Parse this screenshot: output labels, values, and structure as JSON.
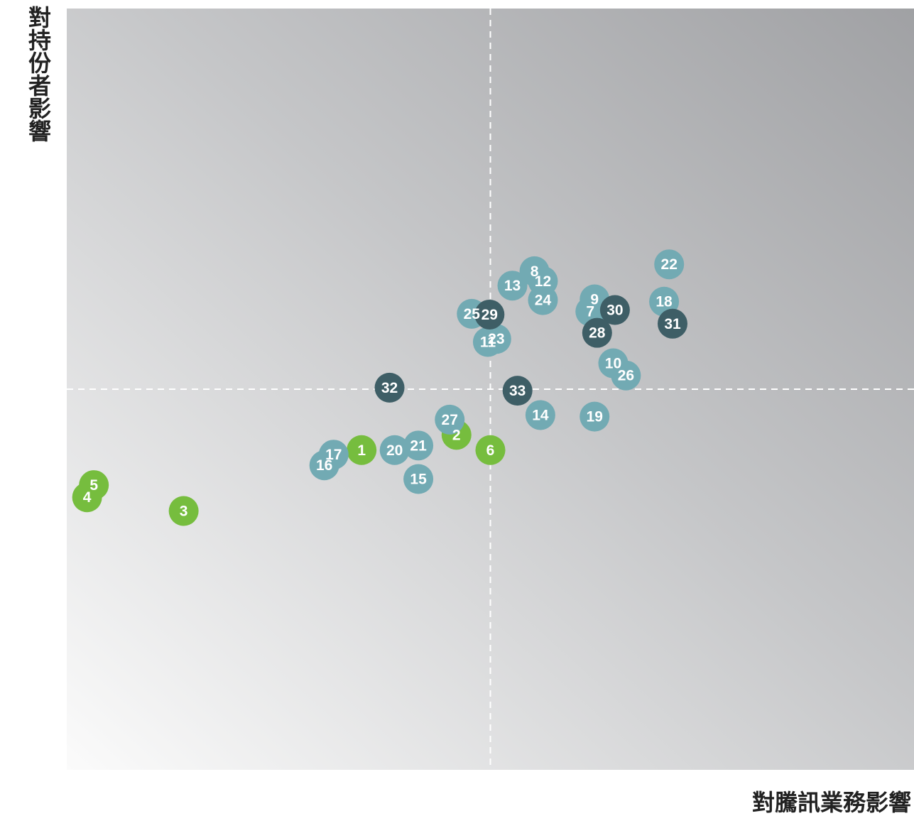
{
  "chart_data": {
    "type": "scatter",
    "title": "",
    "xlabel": "對騰訊業務影響",
    "ylabel": "對持份者影響",
    "xlim": [
      0,
      100
    ],
    "ylim": [
      0,
      100
    ],
    "grid": false,
    "quadrant_lines": {
      "x": 50,
      "y": 50
    },
    "colors": {
      "green": "#76bd3e",
      "teal": "#72aab3",
      "dark": "#3e5e66"
    },
    "points": [
      {
        "label": "1",
        "x": 34.8,
        "y": 42.0,
        "color": "green"
      },
      {
        "label": "2",
        "x": 46.0,
        "y": 44.0,
        "color": "green"
      },
      {
        "label": "3",
        "x": 13.8,
        "y": 34.0,
        "color": "green"
      },
      {
        "label": "4",
        "x": 2.4,
        "y": 35.8,
        "color": "green"
      },
      {
        "label": "5",
        "x": 3.2,
        "y": 37.4,
        "color": "green"
      },
      {
        "label": "6",
        "x": 50.0,
        "y": 42.0,
        "color": "green"
      },
      {
        "label": "7",
        "x": 61.8,
        "y": 60.2,
        "color": "teal"
      },
      {
        "label": "8",
        "x": 55.2,
        "y": 65.5,
        "color": "teal"
      },
      {
        "label": "9",
        "x": 62.3,
        "y": 61.8,
        "color": "teal"
      },
      {
        "label": "10",
        "x": 64.5,
        "y": 53.4,
        "color": "teal"
      },
      {
        "label": "11",
        "x": 49.7,
        "y": 56.2,
        "color": "teal"
      },
      {
        "label": "12",
        "x": 56.2,
        "y": 64.2,
        "color": "teal"
      },
      {
        "label": "13",
        "x": 52.6,
        "y": 63.6,
        "color": "teal"
      },
      {
        "label": "14",
        "x": 55.9,
        "y": 46.6,
        "color": "teal"
      },
      {
        "label": "15",
        "x": 41.5,
        "y": 38.2,
        "color": "teal"
      },
      {
        "label": "16",
        "x": 30.4,
        "y": 40.0,
        "color": "teal"
      },
      {
        "label": "17",
        "x": 31.5,
        "y": 41.4,
        "color": "teal"
      },
      {
        "label": "18",
        "x": 70.5,
        "y": 61.5,
        "color": "teal"
      },
      {
        "label": "19",
        "x": 62.3,
        "y": 46.4,
        "color": "teal"
      },
      {
        "label": "20",
        "x": 38.7,
        "y": 42.0,
        "color": "teal"
      },
      {
        "label": "21",
        "x": 41.5,
        "y": 42.6,
        "color": "teal"
      },
      {
        "label": "22",
        "x": 71.1,
        "y": 66.4,
        "color": "teal"
      },
      {
        "label": "23",
        "x": 50.7,
        "y": 56.6,
        "color": "teal"
      },
      {
        "label": "24",
        "x": 56.2,
        "y": 61.7,
        "color": "teal"
      },
      {
        "label": "25",
        "x": 47.8,
        "y": 59.9,
        "color": "teal"
      },
      {
        "label": "26",
        "x": 66.0,
        "y": 51.8,
        "color": "teal"
      },
      {
        "label": "27",
        "x": 45.2,
        "y": 46.0,
        "color": "teal"
      },
      {
        "label": "28",
        "x": 62.6,
        "y": 57.4,
        "color": "dark"
      },
      {
        "label": "29",
        "x": 49.9,
        "y": 59.8,
        "color": "dark"
      },
      {
        "label": "30",
        "x": 64.7,
        "y": 60.4,
        "color": "dark"
      },
      {
        "label": "31",
        "x": 71.5,
        "y": 58.6,
        "color": "dark"
      },
      {
        "label": "32",
        "x": 38.1,
        "y": 50.2,
        "color": "dark"
      },
      {
        "label": "33",
        "x": 53.2,
        "y": 49.8,
        "color": "dark"
      }
    ]
  }
}
